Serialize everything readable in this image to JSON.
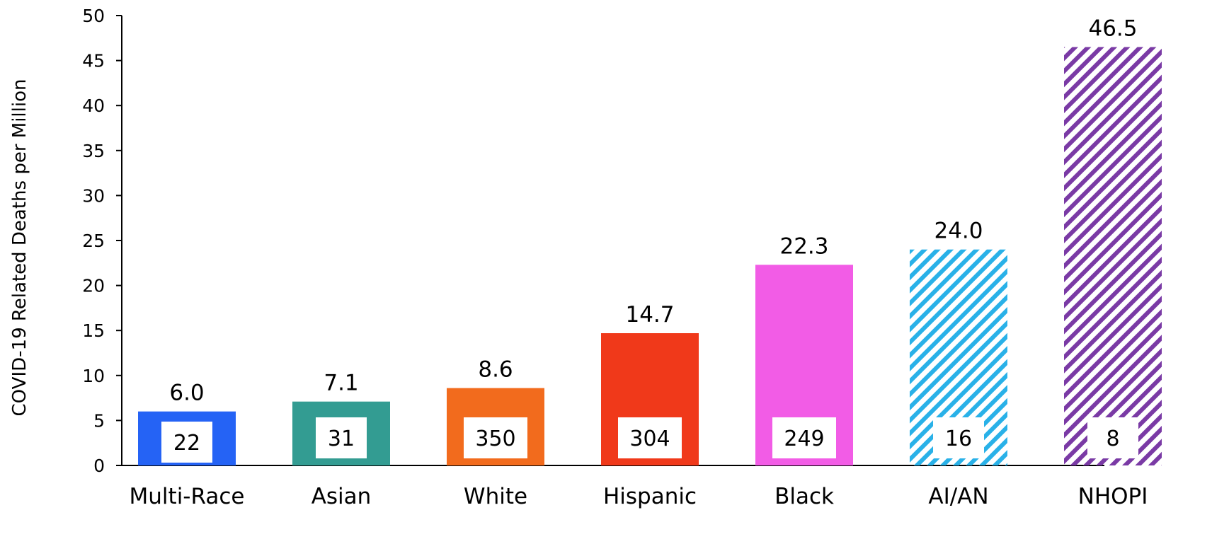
{
  "chart_data": {
    "type": "bar",
    "ylabel": "COVID-19 Related Deaths per Million",
    "xlabel": "",
    "ylim": [
      0,
      50
    ],
    "yticks": [
      "0",
      "5",
      "10",
      "15",
      "20",
      "25",
      "30",
      "35",
      "40",
      "45",
      "50"
    ],
    "grid": false,
    "categories": [
      "Multi-Race",
      "Asian",
      "White",
      "Hispanic",
      "Black",
      "AI/AN",
      "NHOPI"
    ],
    "values": [
      6.0,
      7.1,
      8.6,
      14.7,
      22.3,
      24.0,
      46.5
    ],
    "value_labels": [
      "6.0",
      "7.1",
      "8.6",
      "14.7",
      "22.3",
      "24.0",
      "46.5"
    ],
    "count_labels": [
      "22",
      "31",
      "350",
      "304",
      "249",
      "16",
      "8"
    ],
    "colors": [
      "#2563f5",
      "#339c92",
      "#f26b1d",
      "#f0391a",
      "#f25ce6",
      "#29b1e8",
      "#7a3aa5"
    ],
    "patterns": [
      "solid",
      "solid",
      "solid",
      "solid",
      "solid",
      "hatched",
      "hatched"
    ]
  }
}
